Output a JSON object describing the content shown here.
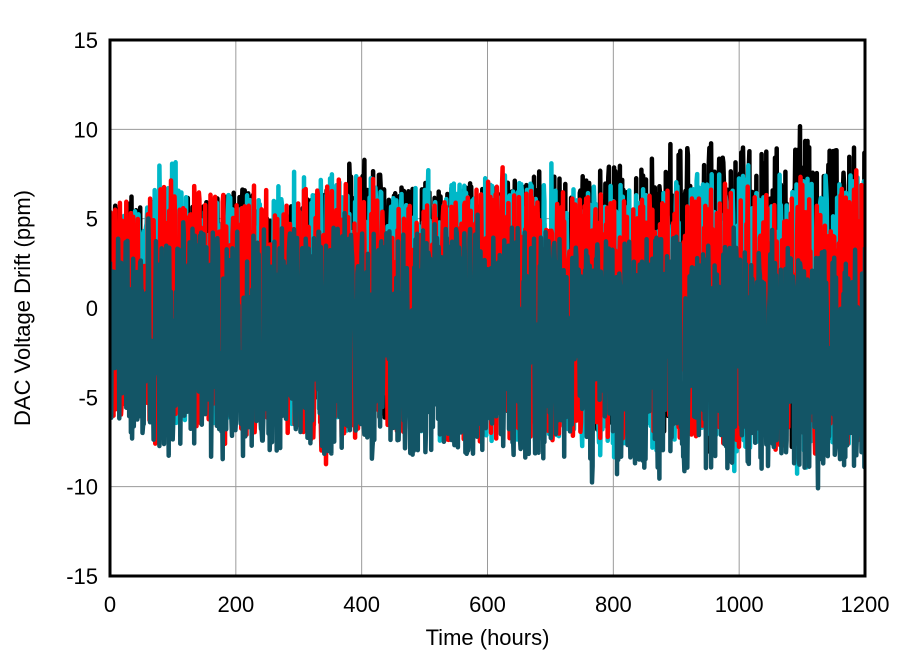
{
  "chart_data": {
    "type": "line",
    "title": "",
    "xlabel": "Time (hours)",
    "ylabel": "DAC Voltage Drift (ppm)",
    "xlim": [
      0,
      1200
    ],
    "ylim": [
      -15,
      15
    ],
    "xticks": [
      0,
      200,
      400,
      600,
      800,
      1000,
      1200
    ],
    "yticks": [
      15,
      10,
      5,
      0,
      -5,
      -10,
      -15
    ],
    "grid": true,
    "legend": "none",
    "series": [
      {
        "color": "#000000",
        "x": [
          0,
          50,
          100,
          150,
          200,
          250,
          300,
          350,
          400,
          450,
          500,
          550,
          600,
          650,
          700,
          750,
          800,
          850,
          900,
          950,
          1000,
          1050,
          1100,
          1150,
          1200
        ],
        "upper": [
          6,
          6,
          6.5,
          6,
          7,
          6,
          6,
          7,
          8.5,
          7,
          7,
          7,
          7,
          7.5,
          7.5,
          7.5,
          8,
          8.5,
          9,
          9.5,
          9,
          9,
          9.5,
          9,
          9
        ],
        "lower": [
          -5.5,
          -5.5,
          -6,
          -6,
          -6,
          -6,
          -6,
          -6,
          -6.5,
          -6.5,
          -6.5,
          -6.5,
          -6.5,
          -6.5,
          -7,
          -7,
          -7,
          -7,
          -7.5,
          -7.5,
          -7.5,
          -7.5,
          -8,
          -8,
          -8
        ],
        "center": [
          0.5,
          0.5,
          0.5,
          0.5,
          0.5,
          0.5,
          0.5,
          0.5,
          1,
          1,
          1,
          1,
          1,
          1.5,
          1.5,
          1.5,
          2,
          2,
          2,
          2.5,
          2.5,
          2.5,
          2.5,
          2.5,
          2.5
        ]
      },
      {
        "color": "#00b8c8",
        "x": [
          0,
          50,
          100,
          150,
          200,
          250,
          300,
          350,
          400,
          450,
          500,
          550,
          600,
          650,
          700,
          750,
          800,
          850,
          900,
          950,
          1000,
          1050,
          1100,
          1150,
          1200
        ],
        "upper": [
          5,
          6,
          7.5,
          6,
          6.5,
          6,
          6.5,
          7.5,
          7.5,
          7,
          7,
          7,
          7.5,
          7,
          7,
          7,
          7,
          7.5,
          7.5,
          7.5,
          7.5,
          7,
          7.5,
          7.5,
          7.5
        ],
        "lower": [
          -6,
          -6,
          -6.5,
          -6.5,
          -6.5,
          -6.5,
          -6.5,
          -7,
          -7,
          -7,
          -7,
          -7.5,
          -7.5,
          -7.5,
          -7.5,
          -8,
          -8,
          -8,
          -8,
          -8,
          -8.5,
          -8.5,
          -8.5,
          -8.5,
          -8.5
        ],
        "center": [
          0,
          0,
          0,
          0,
          0,
          0,
          0,
          0.5,
          1,
          1,
          1,
          1,
          1,
          1,
          1,
          0.5,
          0.5,
          0.5,
          0.5,
          0.5,
          0.5,
          0.5,
          0.5,
          0.5,
          0.5
        ]
      },
      {
        "color": "#ff0000",
        "x": [
          0,
          50,
          100,
          150,
          200,
          250,
          300,
          350,
          400,
          450,
          500,
          550,
          600,
          650,
          700,
          750,
          800,
          850,
          900,
          950,
          1000,
          1050,
          1100,
          1150,
          1200
        ],
        "upper": [
          6,
          6.5,
          8,
          6.5,
          6,
          6,
          6.5,
          7.5,
          6.5,
          6,
          6,
          6,
          7,
          7,
          6.5,
          6.5,
          6.5,
          6.5,
          7,
          7,
          7,
          7,
          7.5,
          7,
          7
        ],
        "lower": [
          -6,
          -6.5,
          -7,
          -6.5,
          -7,
          -7.5,
          -7,
          -9,
          -7,
          -7,
          -7,
          -7.5,
          -7.5,
          -7.5,
          -7.5,
          -7.5,
          -7.5,
          -7.5,
          -7.5,
          -7.5,
          -8,
          -8,
          -8,
          -8,
          -8
        ],
        "center": [
          -0.5,
          -0.5,
          -0.5,
          -0.5,
          -0.5,
          -0.5,
          -0.5,
          -0.5,
          -1,
          -1,
          -1,
          -1.5,
          -1.5,
          -1.5,
          -1.5,
          -1.5,
          -1.5,
          -1.5,
          -1.5,
          -1.5,
          -1.5,
          -1.5,
          -1.5,
          -1.5,
          -1.5
        ]
      },
      {
        "color": "#135566",
        "x": [
          0,
          50,
          100,
          150,
          200,
          250,
          300,
          350,
          400,
          450,
          500,
          550,
          600,
          650,
          700,
          750,
          800,
          850,
          900,
          950,
          1000,
          1050,
          1100,
          1150,
          1200
        ],
        "upper": [
          4,
          4,
          4.5,
          4.5,
          4.5,
          4.5,
          4.5,
          4.5,
          4.5,
          4.5,
          4.5,
          4.5,
          4.5,
          4.5,
          4.5,
          4,
          4,
          4,
          4,
          4,
          3.5,
          3.5,
          3.5,
          3.5,
          3.5
        ],
        "lower": [
          -7,
          -7.5,
          -8,
          -7.5,
          -7.5,
          -8,
          -8,
          -8.5,
          -8,
          -8,
          -8.5,
          -9,
          -8.5,
          -8.5,
          -8.5,
          -9,
          -9.5,
          -9,
          -9,
          -9,
          -9,
          -9,
          -9,
          -9,
          -9
        ],
        "center": [
          -1,
          -1,
          -1.5,
          -1.5,
          -1.5,
          -1.5,
          -1.5,
          -1.5,
          -1.5,
          -1.5,
          -1.5,
          -1.5,
          -2,
          -2,
          -2,
          -2,
          -2.5,
          -2.5,
          -2.5,
          -2.5,
          -2.5,
          -2.5,
          -2.5,
          -2.5,
          -2.5
        ]
      }
    ]
  }
}
